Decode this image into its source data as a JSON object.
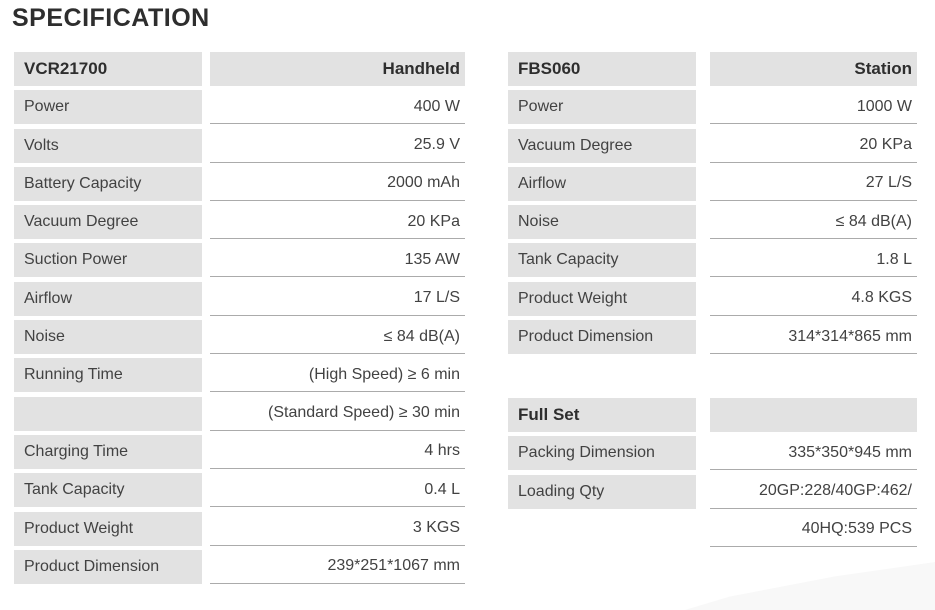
{
  "page": {
    "title": "SPECIFICATION"
  },
  "colors": {
    "cell_background": "#e2e2e2",
    "text": "#424242",
    "header_text": "#2e2e2e",
    "underline": "#ababab"
  },
  "tables": [
    {
      "name": "vcr21700",
      "rows": [
        {
          "label": "VCR21700",
          "value": "Handheld",
          "style": "header"
        },
        {
          "label": "Power",
          "value": "400 W"
        },
        {
          "label": "Volts",
          "value": "25.9 V"
        },
        {
          "label": "Battery Capacity",
          "value": "2000 mAh"
        },
        {
          "label": "Vacuum Degree",
          "value": "20 KPa"
        },
        {
          "label": "Suction Power",
          "value": "135 AW"
        },
        {
          "label": "Airflow",
          "value": "17 L/S"
        },
        {
          "label": "Noise",
          "value": "≤ 84 dB(A)"
        },
        {
          "label": "Running Time",
          "value": "(High Speed) ≥ 6 min"
        },
        {
          "label": "",
          "value": "(Standard Speed) ≥ 30 min"
        },
        {
          "label": "Charging Time",
          "value": "4 hrs"
        },
        {
          "label": "Tank Capacity",
          "value": "0.4 L"
        },
        {
          "label": "Product Weight",
          "value": "3 KGS"
        },
        {
          "label": "Product Dimension",
          "value": "239*251*1067 mm"
        }
      ]
    },
    {
      "name": "fbs060",
      "rows": [
        {
          "label": "FBS060",
          "value": "Station",
          "style": "header"
        },
        {
          "label": "Power",
          "value": "1000 W"
        },
        {
          "label": "Vacuum Degree",
          "value": "20 KPa"
        },
        {
          "label": "Airflow",
          "value": "27 L/S"
        },
        {
          "label": "Noise",
          "value": "≤ 84 dB(A)"
        },
        {
          "label": "Tank Capacity",
          "value": "1.8 L"
        },
        {
          "label": "Product Weight",
          "value": "4.8 KGS"
        },
        {
          "label": "Product Dimension",
          "value": "314*314*865 mm"
        }
      ]
    },
    {
      "name": "full-set",
      "rows": [
        {
          "label": "Full Set",
          "value": "",
          "style": "header",
          "value_plain": true
        },
        {
          "label": "Packing Dimension",
          "value": "335*350*945 mm"
        },
        {
          "label": "Loading Qty",
          "value": "20GP:228/40GP:462/"
        },
        {
          "label": "",
          "value": "40HQ:539 PCS",
          "label_plain": true
        }
      ]
    }
  ]
}
